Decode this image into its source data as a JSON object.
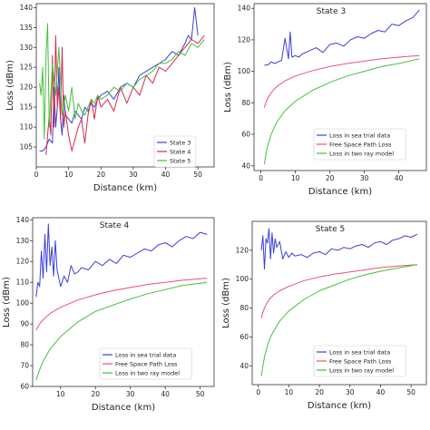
{
  "chart_data": [
    {
      "type": "line",
      "title": "",
      "xlabel": "Distance (km)",
      "ylabel": "Loss (dBm)",
      "xlim": [
        0,
        55
      ],
      "ylim": [
        100,
        141
      ],
      "xticks": [
        0,
        10,
        20,
        30,
        40,
        50
      ],
      "yticks": [
        105,
        110,
        115,
        120,
        125,
        130,
        135,
        140
      ],
      "legend": "bottom-right",
      "grid": false,
      "series": [
        {
          "name": "State 3",
          "color": "#3b3fd6",
          "x": [
            1,
            2,
            3,
            4,
            5,
            5.5,
            6,
            6.5,
            7,
            7.5,
            8,
            8.5,
            9,
            10,
            11,
            12,
            13,
            14,
            15,
            16,
            17,
            18,
            19,
            20,
            22,
            24,
            26,
            28,
            30,
            32,
            34,
            36,
            38,
            40,
            42,
            44,
            46,
            47,
            48,
            49,
            50
          ],
          "y": [
            104,
            104,
            105,
            107,
            106,
            120,
            110,
            115,
            125,
            112,
            108,
            118,
            113,
            112,
            111,
            114,
            113,
            112,
            115,
            114,
            116,
            115,
            117,
            118,
            119,
            117,
            120,
            121,
            120,
            123,
            124,
            125,
            126,
            127,
            129,
            128,
            131,
            133,
            132,
            140,
            133
          ]
        },
        {
          "name": "State 4",
          "color": "#d42a4e",
          "x": [
            3,
            4,
            4.5,
            5,
            5.5,
            6,
            6.5,
            7,
            7.5,
            8,
            8.5,
            9,
            10,
            11,
            12,
            13,
            14,
            15,
            16,
            17,
            18,
            19,
            20,
            22,
            24,
            26,
            28,
            30,
            32,
            34,
            36,
            38,
            40,
            42,
            44,
            46,
            48,
            50,
            52
          ],
          "y": [
            103,
            113,
            108,
            128,
            110,
            133,
            115,
            120,
            112,
            130,
            110,
            114,
            108,
            104,
            107,
            110,
            112,
            106,
            113,
            117,
            112,
            118,
            115,
            117,
            114,
            120,
            116,
            120,
            118,
            123,
            121,
            125,
            124,
            126,
            128,
            130,
            132,
            131,
            133
          ]
        },
        {
          "name": "State 5",
          "color": "#43c23a",
          "x": [
            1,
            1.5,
            2,
            2.5,
            3,
            3.5,
            4,
            5,
            6,
            7,
            8,
            9,
            10,
            11,
            12,
            13,
            14,
            15,
            16,
            17,
            18,
            19,
            20,
            22,
            24,
            26,
            28,
            30,
            32,
            34,
            36,
            38,
            40,
            42,
            44,
            46,
            48,
            50,
            52
          ],
          "y": [
            121,
            118,
            125,
            107,
            128,
            136,
            110,
            126,
            118,
            130,
            113,
            118,
            114,
            120,
            112,
            116,
            114,
            113,
            115,
            117,
            116,
            118,
            117,
            118,
            120,
            119,
            121,
            120,
            122,
            123,
            124,
            126,
            126,
            127,
            129,
            128,
            131,
            130,
            132
          ]
        }
      ]
    },
    {
      "type": "line",
      "title": "State 3",
      "xlabel": "Distance (km)",
      "ylabel": "Loss (dBm)",
      "xlim": [
        -2,
        48
      ],
      "ylim": [
        37,
        143
      ],
      "xticks": [
        0,
        10,
        20,
        30,
        40
      ],
      "yticks": [
        40,
        60,
        80,
        100,
        120,
        140
      ],
      "legend": "bottom-right",
      "grid": false,
      "series": [
        {
          "name": "Loss in sea trial data",
          "color": "#3b3fd6",
          "x": [
            1,
            2,
            3,
            4,
            5,
            6,
            7,
            8,
            8.5,
            9,
            10,
            11,
            12,
            14,
            16,
            18,
            20,
            22,
            24,
            26,
            28,
            30,
            32,
            34,
            36,
            38,
            40,
            42,
            44,
            46
          ],
          "y": [
            104,
            104,
            106,
            105,
            106,
            107,
            121,
            108,
            125,
            109,
            110,
            109,
            111,
            113,
            115,
            112,
            117,
            118,
            116,
            120,
            122,
            121,
            124,
            126,
            125,
            130,
            129,
            132,
            134,
            139
          ]
        },
        {
          "name": "Free Space Path Loss",
          "color": "#e8507a",
          "x": [
            1,
            1.5,
            2,
            3,
            4,
            5,
            7,
            10,
            15,
            20,
            25,
            30,
            35,
            40,
            46
          ],
          "y": [
            77,
            80.5,
            83,
            86.5,
            89,
            91,
            94,
            97,
            100.5,
            103,
            105,
            106.5,
            108,
            109,
            110
          ]
        },
        {
          "name": "Loss in two ray model",
          "color": "#43c23a",
          "x": [
            1,
            1.5,
            2,
            3,
            4,
            5,
            7,
            10,
            15,
            20,
            25,
            30,
            35,
            40,
            46
          ],
          "y": [
            41,
            48,
            53,
            60,
            65,
            69,
            75,
            81,
            88,
            93,
            97,
            100,
            103,
            105,
            108
          ]
        }
      ]
    },
    {
      "type": "line",
      "title": "State 4",
      "xlabel": "Distance (km)",
      "ylabel": "Loss (dBm)",
      "xlim": [
        2,
        54
      ],
      "ylim": [
        60,
        141
      ],
      "xticks": [
        10,
        20,
        30,
        40,
        50
      ],
      "yticks": [
        60,
        70,
        80,
        90,
        100,
        110,
        120,
        130,
        140
      ],
      "legend": "bottom-right",
      "grid": false,
      "series": [
        {
          "name": "Loss in sea trial data",
          "color": "#3b3fd6",
          "x": [
            3,
            3.5,
            4,
            4.5,
            5,
            5.5,
            6,
            6.5,
            7,
            7.5,
            8,
            8.5,
            9,
            10,
            11,
            12,
            13,
            14,
            15,
            16,
            18,
            20,
            22,
            24,
            26,
            28,
            30,
            32,
            34,
            36,
            38,
            40,
            42,
            44,
            46,
            48,
            50,
            52
          ],
          "y": [
            103,
            110,
            108,
            125,
            112,
            133,
            115,
            138,
            118,
            127,
            113,
            130,
            116,
            108,
            113,
            110,
            118,
            114,
            115,
            117,
            116,
            120,
            118,
            121,
            119,
            123,
            122,
            124,
            126,
            125,
            128,
            129,
            127,
            130,
            132,
            131,
            134,
            133
          ]
        },
        {
          "name": "Free Space Path Loss",
          "color": "#e8507a",
          "x": [
            3,
            4,
            5,
            7,
            10,
            15,
            20,
            25,
            30,
            35,
            40,
            45,
            52
          ],
          "y": [
            87,
            90,
            92,
            95,
            98,
            101.5,
            104,
            106,
            107.5,
            109,
            110,
            111,
            112
          ]
        },
        {
          "name": "Loss in two ray model",
          "color": "#43c23a",
          "x": [
            3,
            4,
            5,
            7,
            10,
            15,
            20,
            25,
            30,
            35,
            40,
            45,
            52
          ],
          "y": [
            63,
            68,
            72,
            78,
            84,
            91,
            96,
            99,
            102,
            104.5,
            106.5,
            108.5,
            110
          ]
        }
      ]
    },
    {
      "type": "line",
      "title": "State 5",
      "xlabel": "Distance (km)",
      "ylabel": "Loss (dBm)",
      "xlim": [
        -2,
        55
      ],
      "ylim": [
        27,
        140
      ],
      "xticks": [
        0,
        10,
        20,
        30,
        40,
        50
      ],
      "yticks": [
        40,
        60,
        80,
        100,
        120
      ],
      "legend": "bottom-right",
      "grid": false,
      "series": [
        {
          "name": "Loss in sea trial data",
          "color": "#3b3fd6",
          "x": [
            1,
            1.5,
            2,
            2.5,
            3,
            3.5,
            4,
            4.5,
            5,
            5.5,
            6,
            7,
            8,
            9,
            10,
            11,
            12,
            14,
            16,
            18,
            20,
            22,
            24,
            26,
            28,
            30,
            32,
            34,
            36,
            38,
            40,
            42,
            44,
            46,
            48,
            50,
            52
          ],
          "y": [
            120,
            130,
            107,
            128,
            125,
            135,
            114,
            132,
            118,
            128,
            122,
            126,
            114,
            119,
            115,
            118,
            116,
            117,
            115,
            118,
            119,
            117,
            121,
            120,
            122,
            121,
            123,
            124,
            122,
            125,
            126,
            124,
            127,
            128,
            130,
            129,
            131
          ]
        },
        {
          "name": "Free Space Path Loss",
          "color": "#e8507a",
          "x": [
            1,
            1.5,
            2,
            3,
            4,
            5,
            7,
            10,
            15,
            20,
            25,
            30,
            35,
            40,
            45,
            52
          ],
          "y": [
            73,
            77,
            80,
            84,
            87,
            89,
            92,
            95,
            99,
            101.5,
            103.5,
            105,
            106.5,
            108,
            109,
            110
          ]
        },
        {
          "name": "Loss in two ray model",
          "color": "#43c23a",
          "x": [
            1,
            1.5,
            2,
            3,
            4,
            5,
            7,
            10,
            15,
            20,
            25,
            30,
            35,
            40,
            45,
            52
          ],
          "y": [
            33,
            40,
            46,
            54,
            60,
            64,
            71,
            78,
            86,
            92,
            96,
            100,
            103,
            105.5,
            107.5,
            110
          ]
        }
      ]
    }
  ]
}
